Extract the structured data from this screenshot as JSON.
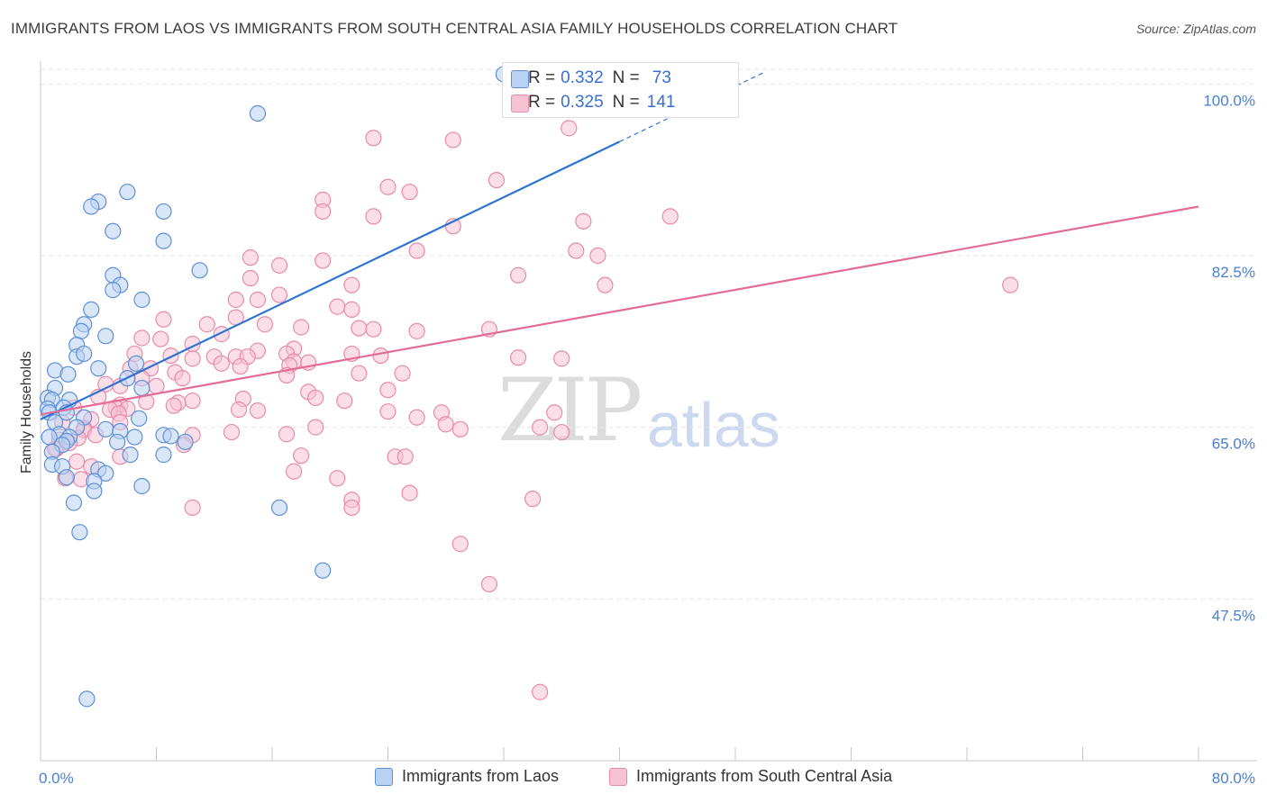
{
  "title": "IMMIGRANTS FROM LAOS VS IMMIGRANTS FROM SOUTH CENTRAL ASIA FAMILY HOUSEHOLDS CORRELATION CHART",
  "source": "Source: ZipAtlas.com",
  "watermark": {
    "zip": "ZIP",
    "atlas": "atlas"
  },
  "legend_box": {
    "rows": [
      {
        "r_label": "R =",
        "r_value": "0.332",
        "n_label": "N =",
        "n_value": "73"
      },
      {
        "r_label": "R =",
        "r_value": "0.325",
        "n_label": "N =",
        "n_value": "141"
      }
    ]
  },
  "colors": {
    "blue_fill": "#b9d2f3",
    "blue_stroke": "#5d8fd8",
    "blue_line": "#2f73d0",
    "pink_fill": "#f7c3d3",
    "pink_stroke": "#e88aaa",
    "pink_line": "#e26b98",
    "grid": "#e6e6e6",
    "tick_text": "#4a7fd0"
  },
  "chart_data": {
    "type": "scatter",
    "title": "IMMIGRANTS FROM LAOS VS IMMIGRANTS FROM SOUTH CENTRAL ASIA FAMILY HOUSEHOLDS CORRELATION CHART",
    "xlabel": "",
    "ylabel": "Family Households",
    "xlim": [
      0,
      80
    ],
    "ylim": [
      31,
      101.5
    ],
    "x_tick_labels": [
      {
        "value": 0,
        "label": "0.0%"
      },
      {
        "value": 80,
        "label": "80.0%"
      }
    ],
    "y_ticks": [
      {
        "value": 100,
        "label": "100.0%"
      },
      {
        "value": 82.5,
        "label": "82.5%"
      },
      {
        "value": 65,
        "label": "65.0%"
      },
      {
        "value": 47.5,
        "label": "47.5%"
      }
    ],
    "series": [
      {
        "name": "Immigrants from Laos",
        "R": 0.332,
        "N": 73,
        "trend": {
          "x0": 0,
          "y0": 65.8,
          "x1": 50,
          "y1": 101.2,
          "solid_until_x": 40
        },
        "points": [
          [
            32,
            101
          ],
          [
            15,
            97
          ],
          [
            6,
            89
          ],
          [
            4,
            88
          ],
          [
            3.5,
            87.5
          ],
          [
            8.5,
            87
          ],
          [
            5,
            85
          ],
          [
            8.5,
            84
          ],
          [
            11,
            81
          ],
          [
            5,
            80.5
          ],
          [
            5.5,
            79.5
          ],
          [
            5,
            79
          ],
          [
            7,
            78
          ],
          [
            3.5,
            77
          ],
          [
            3,
            75.5
          ],
          [
            2.8,
            74.8
          ],
          [
            4.5,
            74.3
          ],
          [
            2.5,
            73.4
          ],
          [
            2.5,
            72.2
          ],
          [
            3,
            72.5
          ],
          [
            6.6,
            71.5
          ],
          [
            4,
            71
          ],
          [
            1,
            70.8
          ],
          [
            1.9,
            70.4
          ],
          [
            6,
            70
          ],
          [
            1,
            69
          ],
          [
            7,
            69
          ],
          [
            0.5,
            68
          ],
          [
            2,
            67.8
          ],
          [
            0.8,
            67.8
          ],
          [
            1.6,
            67
          ],
          [
            0.5,
            66.9
          ],
          [
            1.8,
            66.5
          ],
          [
            0.6,
            66.5
          ],
          [
            3,
            66
          ],
          [
            6.8,
            65.9
          ],
          [
            1,
            65.5
          ],
          [
            2.5,
            65
          ],
          [
            4.5,
            64.8
          ],
          [
            5.5,
            64.6
          ],
          [
            1.3,
            64.3
          ],
          [
            8.5,
            64.2
          ],
          [
            9,
            64.1
          ],
          [
            0.6,
            64
          ],
          [
            2,
            64
          ],
          [
            6.5,
            64
          ],
          [
            1.8,
            63.6
          ],
          [
            1.5,
            63.2
          ],
          [
            5.3,
            63.5
          ],
          [
            10,
            63.5
          ],
          [
            0.8,
            62.5
          ],
          [
            6.2,
            62.2
          ],
          [
            8.5,
            62.2
          ],
          [
            0.8,
            61.2
          ],
          [
            1.5,
            61
          ],
          [
            4,
            60.7
          ],
          [
            4.5,
            60.3
          ],
          [
            1.8,
            59.9
          ],
          [
            3.7,
            59.5
          ],
          [
            7,
            59
          ],
          [
            3.7,
            58.5
          ],
          [
            2.3,
            57.3
          ],
          [
            16.5,
            56.8
          ],
          [
            2.7,
            54.3
          ],
          [
            19.5,
            50.4
          ],
          [
            3.2,
            37.3
          ]
        ]
      },
      {
        "name": "Immigrants from South Central Asia",
        "R": 0.325,
        "N": 141,
        "trend": {
          "x0": 0,
          "y0": 66.3,
          "x1": 80,
          "y1": 87.5
        },
        "points": [
          [
            36.5,
            95.5
          ],
          [
            23,
            94.5
          ],
          [
            28.5,
            94.3
          ],
          [
            31.5,
            90.2
          ],
          [
            24,
            89.5
          ],
          [
            25.5,
            89
          ],
          [
            19.5,
            88.2
          ],
          [
            19.5,
            87
          ],
          [
            23,
            86.5
          ],
          [
            43.5,
            86.5
          ],
          [
            37.5,
            86
          ],
          [
            28.5,
            85.5
          ],
          [
            26,
            83
          ],
          [
            37,
            83
          ],
          [
            38.5,
            82.5
          ],
          [
            14.5,
            82.3
          ],
          [
            19.5,
            82
          ],
          [
            16.5,
            81.5
          ],
          [
            33,
            80.5
          ],
          [
            14.5,
            80.2
          ],
          [
            21.5,
            79.5
          ],
          [
            39,
            79.5
          ],
          [
            67,
            79.5
          ],
          [
            16.5,
            78.5
          ],
          [
            13.5,
            78
          ],
          [
            15,
            78
          ],
          [
            20.5,
            77.3
          ],
          [
            21.5,
            77
          ],
          [
            13.5,
            76.2
          ],
          [
            8.5,
            76
          ],
          [
            15.5,
            75.5
          ],
          [
            11.5,
            75.5
          ],
          [
            18,
            75.2
          ],
          [
            22,
            75.1
          ],
          [
            23,
            75
          ],
          [
            31,
            75
          ],
          [
            26,
            74.8
          ],
          [
            12.5,
            74.5
          ],
          [
            7,
            74.1
          ],
          [
            8.3,
            74
          ],
          [
            10.5,
            73.5
          ],
          [
            17.5,
            73
          ],
          [
            17,
            72.5
          ],
          [
            15,
            72.8
          ],
          [
            6.5,
            72.5
          ],
          [
            21.5,
            72.5
          ],
          [
            23.5,
            72.3
          ],
          [
            9,
            72.3
          ],
          [
            12,
            72.2
          ],
          [
            13.5,
            72.2
          ],
          [
            14.3,
            72.2
          ],
          [
            33,
            72.1
          ],
          [
            36,
            72
          ],
          [
            10.5,
            72
          ],
          [
            17.5,
            71.7
          ],
          [
            18.5,
            71.6
          ],
          [
            12.5,
            71.5
          ],
          [
            17.2,
            71.3
          ],
          [
            13.8,
            71.2
          ],
          [
            6.2,
            71
          ],
          [
            7.6,
            71
          ],
          [
            9.3,
            70.6
          ],
          [
            22,
            70.5
          ],
          [
            25,
            70.5
          ],
          [
            17,
            70.3
          ],
          [
            9.8,
            70
          ],
          [
            7,
            70
          ],
          [
            4.5,
            69.4
          ],
          [
            5.5,
            69.2
          ],
          [
            8,
            69.2
          ],
          [
            24,
            68.8
          ],
          [
            18.5,
            68.6
          ],
          [
            4,
            68.1
          ],
          [
            19,
            68
          ],
          [
            14,
            67.9
          ],
          [
            21,
            67.7
          ],
          [
            10.5,
            67.7
          ],
          [
            7.3,
            67.6
          ],
          [
            9.5,
            67.5
          ],
          [
            5.5,
            67.3
          ],
          [
            9.2,
            67.2
          ],
          [
            2.3,
            67
          ],
          [
            5.2,
            67
          ],
          [
            6,
            66.9
          ],
          [
            13.7,
            66.8
          ],
          [
            4.8,
            66.8
          ],
          [
            15,
            66.7
          ],
          [
            24,
            66.6
          ],
          [
            35.5,
            66.5
          ],
          [
            27.7,
            66.5
          ],
          [
            5.4,
            66.4
          ],
          [
            26,
            66
          ],
          [
            3.5,
            65.8
          ],
          [
            1.5,
            65.5
          ],
          [
            5.5,
            65.5
          ],
          [
            34.5,
            65
          ],
          [
            19,
            65
          ],
          [
            3,
            64.9
          ],
          [
            29,
            64.8
          ],
          [
            28,
            65.3
          ],
          [
            3,
            64.7
          ],
          [
            36,
            64.5
          ],
          [
            13.2,
            64.5
          ],
          [
            17,
            64.3
          ],
          [
            3.8,
            64.2
          ],
          [
            10.5,
            64.2
          ],
          [
            2.6,
            63.9
          ],
          [
            1.3,
            63.7
          ],
          [
            2,
            63.4
          ],
          [
            9.9,
            63.2
          ],
          [
            1.1,
            62.8
          ],
          [
            1,
            62.8
          ],
          [
            18,
            62.1
          ],
          [
            24.5,
            62
          ],
          [
            25.2,
            62
          ],
          [
            5.5,
            62
          ],
          [
            2.5,
            61.5
          ],
          [
            3.5,
            61
          ],
          [
            17.5,
            60.5
          ],
          [
            20.5,
            59.8
          ],
          [
            1.7,
            59.8
          ],
          [
            2.8,
            59.7
          ],
          [
            25.5,
            58.3
          ],
          [
            34,
            57.7
          ],
          [
            21.5,
            57.6
          ],
          [
            10.5,
            56.8
          ],
          [
            21.5,
            56.8
          ],
          [
            29,
            53.1
          ],
          [
            31,
            49
          ],
          [
            34.5,
            38
          ]
        ]
      }
    ]
  },
  "bottom_legend": {
    "laos": "Immigrants from Laos",
    "sca": "Immigrants from South Central Asia"
  }
}
